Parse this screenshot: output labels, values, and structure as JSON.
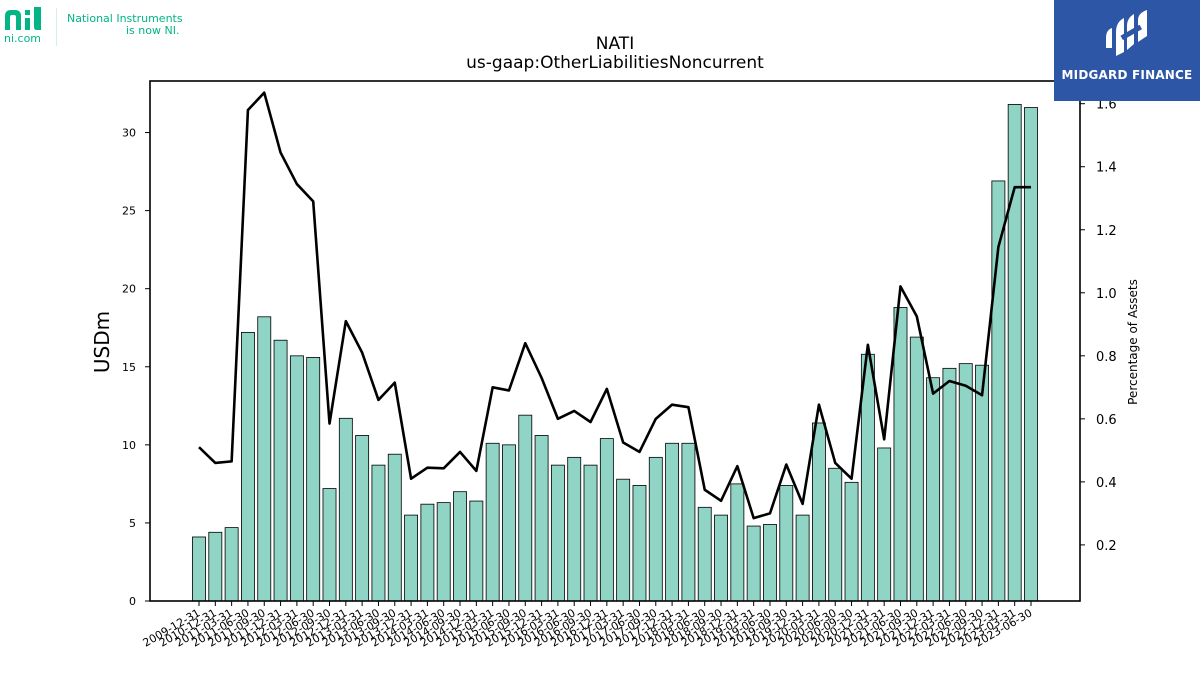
{
  "header": {
    "logo_url_text": "ni.com",
    "logo_tagline_line1": "National Instruments",
    "logo_tagline_line2": "is now NI.",
    "brand_name": "MIDGARD FINANCE"
  },
  "colors": {
    "bar_fill": "#8fd4c5",
    "bar_edge": "#000000",
    "line": "#000000",
    "ni_green": "#03b585",
    "brand_bg": "#2d56a6"
  },
  "chart_data": {
    "type": "bar",
    "title": "NATI",
    "subtitle": "us-gaap:OtherLiabilitiesNoncurrent",
    "ylabel": "USDm",
    "y2label": "Percentage of Assets",
    "ylim": [
      0,
      33.3
    ],
    "y2lim": [
      0.022,
      1.672
    ],
    "yticks": [
      0,
      5,
      10,
      15,
      20,
      25,
      30
    ],
    "y2ticks": [
      0.2,
      0.4,
      0.6,
      0.8,
      1.0,
      1.2,
      1.4,
      1.6
    ],
    "y2tick_labels": [
      "0.2",
      "0.4",
      "0.6",
      "0.8",
      "1.0",
      "1.2",
      "1.4",
      "1.6"
    ],
    "grid": false,
    "categories": [
      "2009-12-31",
      "2010-12-31",
      "2011-03-31",
      "2011-06-30",
      "2011-09-30",
      "2011-12-31",
      "2012-03-31",
      "2012-06-30",
      "2012-09-30",
      "2012-12-31",
      "2013-03-31",
      "2013-06-30",
      "2013-09-30",
      "2013-12-31",
      "2014-03-31",
      "2014-06-30",
      "2014-09-30",
      "2014-12-31",
      "2015-03-31",
      "2015-06-30",
      "2015-09-30",
      "2015-12-31",
      "2016-03-31",
      "2016-06-30",
      "2016-09-30",
      "2016-12-31",
      "2017-03-31",
      "2017-06-30",
      "2017-09-30",
      "2017-12-31",
      "2018-03-31",
      "2018-06-30",
      "2018-09-30",
      "2018-12-31",
      "2019-03-31",
      "2019-06-30",
      "2019-09-30",
      "2019-12-31",
      "2020-03-31",
      "2020-06-30",
      "2020-09-30",
      "2020-12-31",
      "2021-03-31",
      "2021-06-30",
      "2021-09-30",
      "2021-12-31",
      "2022-03-31",
      "2022-06-30",
      "2022-09-30",
      "2022-12-31",
      "2023-03-31",
      "2023-06-30"
    ],
    "xtick_labels": [
      "2009-12-31",
      "2010-12-31",
      "2011-03-31",
      "2011-06-30",
      "2011-09-30",
      "2011-12-31",
      "2012-03-31",
      "2012-06-30",
      "2012-09-30",
      "2012-12-31",
      "2013-03-31",
      "2013-06-30",
      "2013-09-30",
      "2013-12-31",
      "2014-03-31",
      "2014-06-30",
      "2014-09-30",
      "2014-12-31",
      "2015-03-31",
      "2015-06-30",
      "2015-09-30",
      "2015-12-31",
      "2016-03-31",
      "2016-06-30",
      "2016-09-30",
      "2016-12-31",
      "2017-03-31",
      "2017-06-30",
      "2017-09-30",
      "2017-12-31",
      "2018-03-31",
      "2018-06-30",
      "2018-09-30",
      "2018-12-31",
      "2019-03-31",
      "2019-06-30",
      "2019-09-30",
      "2019-12-31",
      "2020-03-31",
      "2020-06-30",
      "2020-09-30",
      "2020-12-31",
      "2021-03-31",
      "2021-06-30",
      "2021-09-30",
      "2021-12-31",
      "2022-03-31",
      "2022-06-30",
      "2022-09-30",
      "2022-12-31",
      "2023-03-31",
      "2023-06-30"
    ],
    "series": [
      {
        "kind": "bar",
        "axis": "left",
        "values": [
          4.1,
          4.4,
          4.7,
          17.2,
          18.2,
          16.7,
          15.7,
          15.6,
          7.2,
          11.7,
          10.6,
          8.7,
          9.4,
          5.5,
          6.2,
          6.3,
          7.0,
          6.4,
          10.1,
          10.0,
          11.9,
          10.6,
          8.7,
          9.2,
          8.7,
          10.4,
          7.8,
          7.4,
          9.2,
          10.1,
          10.1,
          6.0,
          5.5,
          7.5,
          4.8,
          4.9,
          7.4,
          5.5,
          11.4,
          8.5,
          7.6,
          15.8,
          9.8,
          18.8,
          16.9,
          14.3,
          14.9,
          15.2,
          15.1,
          26.9,
          31.8,
          31.6
        ]
      },
      {
        "kind": "line",
        "axis": "right",
        "values": [
          0.51,
          0.46,
          0.465,
          1.58,
          1.635,
          1.445,
          1.345,
          1.29,
          0.585,
          0.91,
          0.81,
          0.66,
          0.715,
          0.41,
          0.445,
          0.443,
          0.495,
          0.435,
          0.7,
          0.69,
          0.84,
          0.73,
          0.6,
          0.625,
          0.59,
          0.695,
          0.525,
          0.495,
          0.6,
          0.645,
          0.637,
          0.375,
          0.34,
          0.45,
          0.285,
          0.3,
          0.455,
          0.33,
          0.645,
          0.46,
          0.41,
          0.835,
          0.535,
          1.02,
          0.925,
          0.68,
          0.72,
          0.705,
          0.675,
          1.145,
          1.335,
          1.335
        ]
      }
    ]
  }
}
